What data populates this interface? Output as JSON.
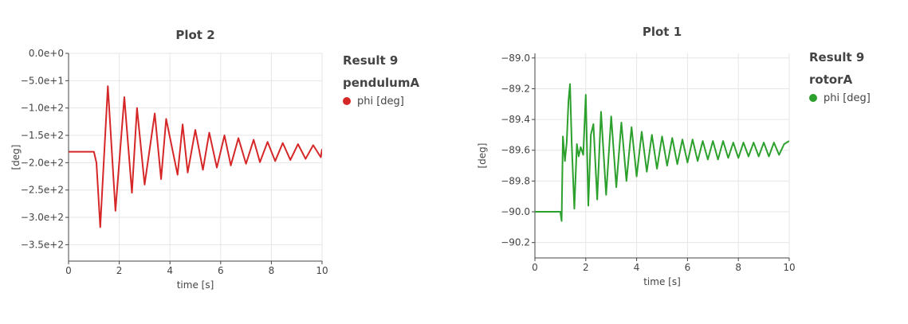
{
  "chart_data": [
    {
      "type": "line",
      "title": "Plot 2",
      "xlabel": "time [s]",
      "ylabel": "[deg]",
      "xlim": [
        0,
        10
      ],
      "ylim": [
        -380,
        0
      ],
      "x_ticks": [
        0,
        2,
        4,
        6,
        8,
        10
      ],
      "x_tick_labels": [
        "0",
        "2",
        "4",
        "6",
        "8",
        "10"
      ],
      "y_ticks": [
        0,
        -50,
        -100,
        -150,
        -200,
        -250,
        -300,
        -350
      ],
      "y_tick_labels": [
        "0.0e+0",
        "−5.0e+1",
        "−1.0e+2",
        "−1.5e+2",
        "−2.0e+2",
        "−2.5e+2",
        "−3.0e+2",
        "−3.5e+2"
      ],
      "grid": true,
      "legend_position": "right",
      "legend_group": [
        "Result 9",
        "pendulumA"
      ],
      "series": [
        {
          "name": "phi [deg]",
          "color": "#d62728",
          "x": [
            0,
            1.0,
            1.1,
            1.25,
            1.55,
            1.85,
            2.2,
            2.5,
            2.7,
            3.0,
            3.4,
            3.65,
            3.85,
            4.3,
            4.5,
            4.7,
            5.0,
            5.3,
            5.55,
            5.85,
            6.15,
            6.4,
            6.7,
            7.0,
            7.3,
            7.55,
            7.85,
            8.15,
            8.45,
            8.75,
            9.05,
            9.35,
            9.65,
            9.95,
            10.0
          ],
          "y": [
            -180,
            -180,
            -200,
            -318,
            -60,
            -288,
            -80,
            -255,
            -100,
            -240,
            -110,
            -230,
            -120,
            -222,
            -130,
            -218,
            -140,
            -213,
            -145,
            -209,
            -150,
            -205,
            -155,
            -202,
            -158,
            -199,
            -162,
            -197,
            -164,
            -195,
            -166,
            -193,
            -168,
            -190,
            -175
          ]
        }
      ]
    },
    {
      "type": "line",
      "title": "Plot 1",
      "xlabel": "time [s]",
      "ylabel": "[deg]",
      "xlim": [
        0,
        10
      ],
      "ylim": [
        -90.3,
        -88.97
      ],
      "x_ticks": [
        0,
        2,
        4,
        6,
        8,
        10
      ],
      "x_tick_labels": [
        "0",
        "2",
        "4",
        "6",
        "8",
        "10"
      ],
      "y_ticks": [
        -89.0,
        -89.2,
        -89.4,
        -89.6,
        -89.8,
        -90.0,
        -90.2
      ],
      "y_tick_labels": [
        "−89.0",
        "−89.2",
        "−89.4",
        "−89.6",
        "−89.8",
        "−90.0",
        "−90.2"
      ],
      "grid": true,
      "legend_position": "right",
      "legend_group": [
        "Result 9",
        "rotorA"
      ],
      "series": [
        {
          "name": "phi [deg]",
          "color": "#2ca02c",
          "x": [
            0,
            1.0,
            1.05,
            1.1,
            1.18,
            1.25,
            1.32,
            1.38,
            1.45,
            1.55,
            1.65,
            1.72,
            1.8,
            1.9,
            2.0,
            2.1,
            2.2,
            2.3,
            2.45,
            2.6,
            2.8,
            3.0,
            3.2,
            3.4,
            3.6,
            3.8,
            4.0,
            4.2,
            4.4,
            4.6,
            4.8,
            5.0,
            5.2,
            5.4,
            5.6,
            5.8,
            6.0,
            6.2,
            6.4,
            6.6,
            6.8,
            7.0,
            7.2,
            7.4,
            7.6,
            7.8,
            8.0,
            8.2,
            8.4,
            8.6,
            8.8,
            9.0,
            9.2,
            9.4,
            9.6,
            9.8,
            10.0
          ],
          "y": [
            -90.0,
            -90.0,
            -90.06,
            -89.51,
            -89.67,
            -89.55,
            -89.28,
            -89.17,
            -89.57,
            -89.98,
            -89.56,
            -89.64,
            -89.58,
            -89.63,
            -89.24,
            -89.96,
            -89.5,
            -89.43,
            -89.92,
            -89.35,
            -89.89,
            -89.38,
            -89.84,
            -89.42,
            -89.8,
            -89.45,
            -89.77,
            -89.48,
            -89.74,
            -89.5,
            -89.72,
            -89.51,
            -89.7,
            -89.52,
            -89.69,
            -89.53,
            -89.68,
            -89.53,
            -89.67,
            -89.54,
            -89.66,
            -89.54,
            -89.66,
            -89.54,
            -89.65,
            -89.55,
            -89.65,
            -89.55,
            -89.64,
            -89.55,
            -89.64,
            -89.55,
            -89.64,
            -89.55,
            -89.63,
            -89.56,
            -89.54
          ]
        }
      ]
    }
  ]
}
